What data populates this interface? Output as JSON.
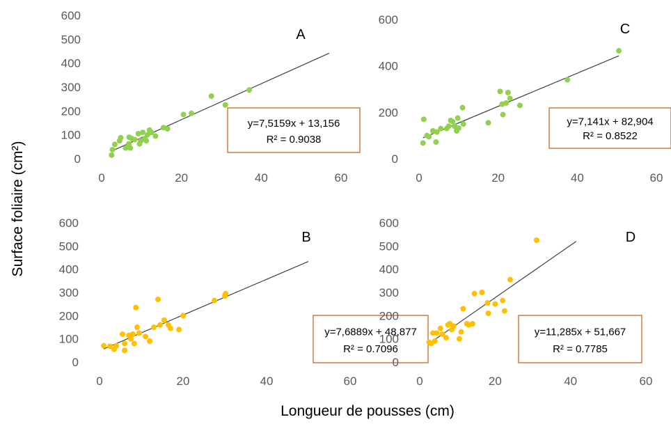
{
  "figure": {
    "xlabel": "Longueur de pousses (cm)",
    "ylabel": "Surface foliaire (cm²)"
  },
  "colors": {
    "green": "#92d050",
    "orange": "#ffc000",
    "trend": "#404040",
    "box": "#c55a11"
  },
  "chart_data": [
    {
      "type": "scatter",
      "panel": "A",
      "color": "#92d050",
      "xlim": [
        0,
        60
      ],
      "ylim": [
        0,
        600
      ],
      "xticks": [
        0,
        20,
        40,
        60
      ],
      "yticks": [
        0,
        100,
        200,
        300,
        400,
        500,
        600
      ],
      "points": [
        [
          2.5,
          15
        ],
        [
          2.7,
          38
        ],
        [
          3.3,
          60
        ],
        [
          4.5,
          75
        ],
        [
          4.8,
          88
        ],
        [
          6,
          45
        ],
        [
          6.5,
          48
        ],
        [
          6.8,
          62
        ],
        [
          6.9,
          90
        ],
        [
          7.2,
          45
        ],
        [
          7.5,
          85
        ],
        [
          8.3,
          80
        ],
        [
          9.2,
          105
        ],
        [
          9.5,
          62
        ],
        [
          9.8,
          75
        ],
        [
          10.3,
          110
        ],
        [
          10.8,
          85
        ],
        [
          11.2,
          75
        ],
        [
          11.5,
          100
        ],
        [
          12,
          120
        ],
        [
          12.5,
          110
        ],
        [
          13.5,
          95
        ],
        [
          15.5,
          130
        ],
        [
          16.5,
          125
        ],
        [
          20.5,
          185
        ],
        [
          22.5,
          190
        ],
        [
          27.5,
          262
        ],
        [
          31,
          225
        ],
        [
          37,
          288
        ]
      ],
      "trendline": {
        "x": [
          2.5,
          57
        ],
        "equation": "y=7,5159x + 13,156",
        "r2": "R² = 0.9038"
      }
    },
    {
      "type": "scatter",
      "panel": "C",
      "color": "#92d050",
      "xlim": [
        0,
        60
      ],
      "ylim": [
        0,
        600
      ],
      "xticks": [
        0,
        20,
        40,
        60
      ],
      "yticks": [
        0,
        200,
        400,
        600
      ],
      "points": [
        [
          1,
          68
        ],
        [
          1.2,
          170
        ],
        [
          2,
          100
        ],
        [
          2.5,
          95
        ],
        [
          3.5,
          120
        ],
        [
          4.3,
          72
        ],
        [
          4.5,
          115
        ],
        [
          5.5,
          130
        ],
        [
          7,
          130
        ],
        [
          7.5,
          140
        ],
        [
          8,
          165
        ],
        [
          8.5,
          160
        ],
        [
          9,
          140
        ],
        [
          9.5,
          120
        ],
        [
          9.8,
          175
        ],
        [
          10,
          132
        ],
        [
          11,
          220
        ],
        [
          11.2,
          150
        ],
        [
          17.5,
          155
        ],
        [
          20.5,
          290
        ],
        [
          21,
          235
        ],
        [
          21.2,
          190
        ],
        [
          22,
          240
        ],
        [
          22.5,
          285
        ],
        [
          23,
          260
        ],
        [
          25.5,
          230
        ],
        [
          37.5,
          340
        ],
        [
          50.5,
          465
        ]
      ],
      "trendline": {
        "x": [
          1,
          50.5
        ],
        "equation": "y=7,141x + 82,904",
        "r2": "R² = 0.8522"
      }
    },
    {
      "type": "scatter",
      "panel": "B",
      "color": "#ffc000",
      "xlim": [
        0,
        60
      ],
      "ylim": [
        0,
        600
      ],
      "xticks": [
        0,
        20,
        40,
        60
      ],
      "yticks": [
        0,
        100,
        200,
        300,
        400,
        500,
        600
      ],
      "points": [
        [
          1,
          70
        ],
        [
          2.5,
          68
        ],
        [
          3.5,
          55
        ],
        [
          4,
          70
        ],
        [
          5.5,
          120
        ],
        [
          6,
          50
        ],
        [
          6,
          80
        ],
        [
          7,
          115
        ],
        [
          7.5,
          100
        ],
        [
          8,
          120
        ],
        [
          8.3,
          80
        ],
        [
          8.7,
          235
        ],
        [
          9,
          150
        ],
        [
          9.5,
          125
        ],
        [
          11,
          110
        ],
        [
          12,
          90
        ],
        [
          13,
          150
        ],
        [
          14,
          270
        ],
        [
          14.5,
          160
        ],
        [
          15.5,
          180
        ],
        [
          16.5,
          160
        ],
        [
          17,
          145
        ],
        [
          19,
          140
        ],
        [
          20,
          200
        ],
        [
          27.5,
          265
        ],
        [
          30,
          285
        ],
        [
          30.2,
          295
        ]
      ],
      "trendline": {
        "x": [
          1,
          50
        ],
        "equation": "y=7,6889x + 48,877",
        "r2": "R² = 0.7096"
      }
    },
    {
      "type": "scatter",
      "panel": "D",
      "color": "#ffc000",
      "xlim": [
        0,
        60
      ],
      "ylim": [
        0,
        600
      ],
      "xticks": [
        0,
        20,
        40,
        60
      ],
      "yticks": [
        0,
        100,
        200,
        300,
        400,
        500,
        600
      ],
      "points": [
        [
          2.5,
          85
        ],
        [
          3,
          80
        ],
        [
          3.5,
          125
        ],
        [
          4,
          90
        ],
        [
          4.5,
          125
        ],
        [
          5.5,
          145
        ],
        [
          6,
          120
        ],
        [
          7,
          105
        ],
        [
          7.5,
          160
        ],
        [
          8,
          165
        ],
        [
          8.5,
          140
        ],
        [
          9,
          155
        ],
        [
          10.5,
          100
        ],
        [
          11,
          130
        ],
        [
          11.5,
          230
        ],
        [
          12.5,
          165
        ],
        [
          13,
          160
        ],
        [
          14,
          165
        ],
        [
          14.5,
          295
        ],
        [
          16.5,
          300
        ],
        [
          18,
          255
        ],
        [
          18.2,
          210
        ],
        [
          20,
          250
        ],
        [
          22,
          265
        ],
        [
          22.5,
          220
        ],
        [
          24,
          355
        ],
        [
          31,
          525
        ]
      ],
      "trendline": {
        "x": [
          2.5,
          41.5
        ],
        "equation": "y=11,285x + 51,667",
        "r2": "R² = 0.7785"
      }
    }
  ]
}
